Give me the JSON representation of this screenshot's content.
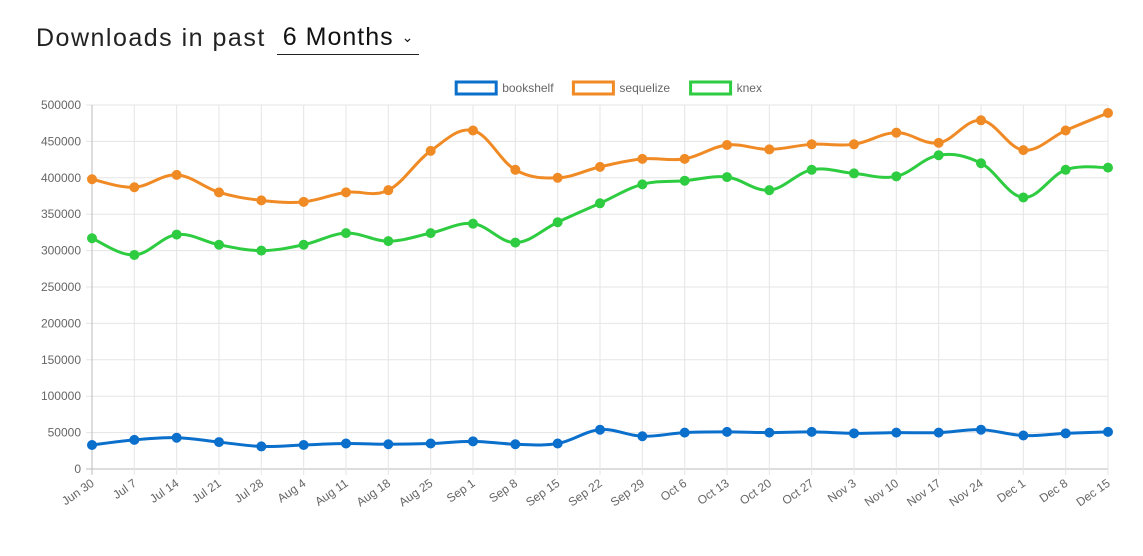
{
  "header": {
    "title": "Downloads in past",
    "period": "6 Months"
  },
  "chart_data": {
    "type": "line",
    "title": "",
    "xlabel": "",
    "ylabel": "",
    "ylim": [
      0,
      500000
    ],
    "yticks": [
      0,
      50000,
      100000,
      150000,
      200000,
      250000,
      300000,
      350000,
      400000,
      450000,
      500000
    ],
    "grid": true,
    "legend": "top-center",
    "categories": [
      "Jun 30",
      "Jul 7",
      "Jul 14",
      "Jul 21",
      "Jul 28",
      "Aug 4",
      "Aug 11",
      "Aug 18",
      "Aug 25",
      "Sep 1",
      "Sep 8",
      "Sep 15",
      "Sep 22",
      "Sep 29",
      "Oct 6",
      "Oct 13",
      "Oct 20",
      "Oct 27",
      "Nov 3",
      "Nov 10",
      "Nov 17",
      "Nov 24",
      "Dec 1",
      "Dec 8",
      "Dec 15"
    ],
    "series": [
      {
        "name": "bookshelf",
        "color": "#0b6fcc",
        "values": [
          33000,
          40000,
          43000,
          37000,
          31000,
          33000,
          35000,
          34000,
          35000,
          38000,
          34000,
          35000,
          54000,
          45000,
          50000,
          51000,
          50000,
          51000,
          49000,
          50000,
          50000,
          54000,
          46000,
          49000,
          51000
        ]
      },
      {
        "name": "sequelize",
        "color": "#f08a24",
        "values": [
          398000,
          387000,
          404000,
          380000,
          369000,
          367000,
          380000,
          383000,
          437000,
          465000,
          411000,
          400000,
          415000,
          426000,
          426000,
          445000,
          439000,
          446000,
          446000,
          462000,
          448000,
          479000,
          438000,
          465000,
          489000
        ]
      },
      {
        "name": "knex",
        "color": "#2ecc40",
        "values": [
          317000,
          294000,
          322000,
          308000,
          300000,
          308000,
          324000,
          313000,
          324000,
          337000,
          311000,
          339000,
          365000,
          391000,
          396000,
          401000,
          383000,
          411000,
          406000,
          402000,
          431000,
          420000,
          373000,
          411000,
          414000
        ]
      }
    ]
  }
}
